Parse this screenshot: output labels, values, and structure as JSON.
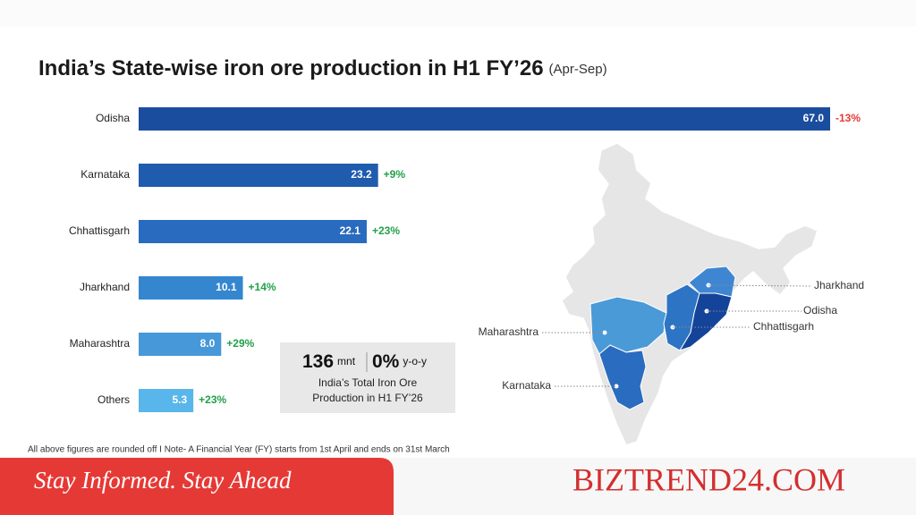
{
  "chart_data": {
    "type": "bar",
    "title": "India’s State-wise iron ore production in H1 FY’26",
    "subtitle": "(Apr-Sep)",
    "categories": [
      "Odisha",
      "Karnataka",
      "Chhattisgarh",
      "Jharkhand",
      "Maharashtra",
      "Others"
    ],
    "values": [
      67.0,
      23.2,
      22.1,
      10.1,
      8.0,
      5.3
    ],
    "value_labels": [
      "67.0",
      "23.2",
      "22.1",
      "10.1",
      "8.0",
      "5.3"
    ],
    "colors": [
      "#1a4d9e",
      "#1f5cae",
      "#296bbf",
      "#3486cf",
      "#4798d8",
      "#58b6ea"
    ],
    "change_values": [
      -13,
      9,
      23,
      14,
      29,
      23
    ],
    "change_labels": [
      "-13%",
      "+9%",
      "+23%",
      "+14%",
      "+29%",
      "+23%"
    ]
  },
  "summary": {
    "total": "136",
    "total_unit": "mnt",
    "change": "0%",
    "change_unit": "y-o-y",
    "caption": [
      "India’s Total Iron Ore",
      "Production in H1 FY’26"
    ]
  },
  "map_labels": [
    "Jharkhand",
    "Odisha",
    "Chhattisgarh",
    "Maharashtra",
    "Karnataka"
  ],
  "footnote": "All above figures are rounded off  I  Note- A Financial Year (FY) starts from 1st April and ends on 31st March",
  "banner": {
    "tagline": "Stay Informed. Stay Ahead",
    "brand": "BIZTREND24.COM"
  }
}
